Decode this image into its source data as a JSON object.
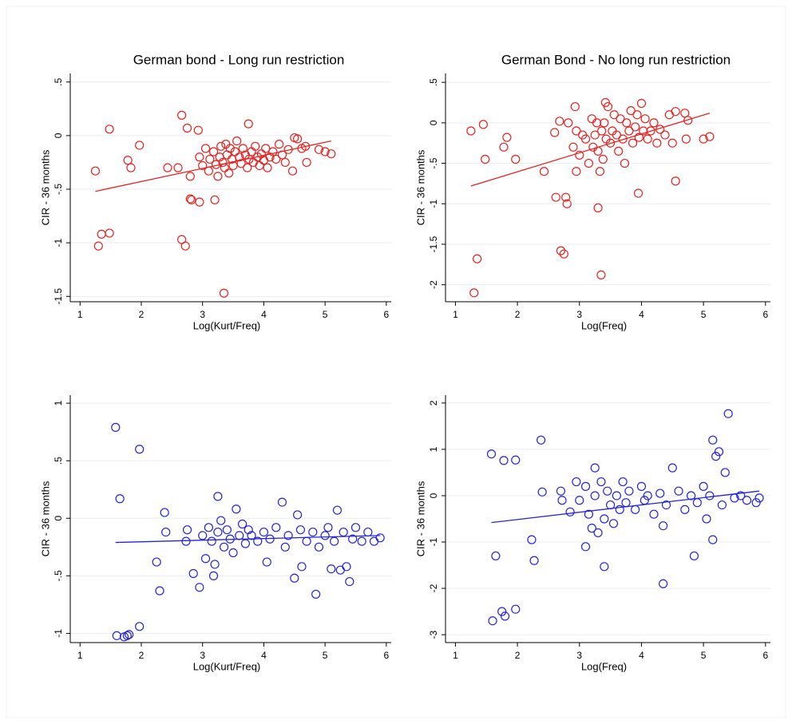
{
  "chart_data": [
    {
      "type": "scatter",
      "title": "German bond - Long run restriction",
      "xlabel": "Log(Kurt/Freq)",
      "ylabel": "CIR - 36 months",
      "xlim": [
        0.84,
        6.08
      ],
      "ylim": [
        -1.55,
        0.58
      ],
      "xticks": [
        1,
        2,
        3,
        4,
        5,
        6
      ],
      "yticks": [
        {
          "value": 0.5,
          "label": ".5"
        },
        0,
        {
          "value": -0.5,
          "label": "-.5"
        },
        -1,
        -1.5
      ],
      "grid": true,
      "series": [
        {
          "color": "#e8211f",
          "x": [
            1.25,
            1.3,
            1.35,
            1.48,
            1.48,
            1.78,
            1.83,
            1.97,
            2.43,
            2.6,
            2.66,
            2.66,
            2.72,
            2.75,
            2.8,
            2.82,
            2.8,
            2.93,
            2.95,
            3.2,
            3.35,
            3.75,
            2.95,
            3.0,
            3.05,
            3.1,
            3.12,
            3.18,
            3.22,
            3.25,
            3.28,
            3.3,
            3.33,
            3.36,
            3.38,
            3.4,
            3.43,
            3.45,
            3.48,
            3.5,
            3.53,
            3.56,
            3.6,
            3.63,
            3.66,
            3.7,
            3.73,
            3.76,
            3.8,
            3.83,
            3.86,
            3.9,
            3.93,
            3.96,
            4.0,
            4.03,
            4.06,
            4.1,
            4.15,
            4.2,
            4.25,
            4.3,
            4.35,
            4.4,
            4.47,
            4.5,
            4.55,
            4.62,
            4.7,
            4.68,
            4.9,
            5.0,
            5.1
          ],
          "values": [
            -0.33,
            -1.03,
            -0.92,
            -0.91,
            0.06,
            -0.23,
            -0.3,
            -0.09,
            -0.3,
            -0.3,
            0.19,
            -0.97,
            -1.03,
            0.07,
            -0.59,
            -0.6,
            -0.38,
            0.05,
            -0.62,
            -0.6,
            -1.47,
            0.11,
            -0.2,
            -0.28,
            -0.12,
            -0.33,
            -0.22,
            -0.15,
            -0.27,
            -0.38,
            -0.2,
            -0.1,
            -0.25,
            -0.3,
            -0.08,
            -0.18,
            -0.35,
            -0.12,
            -0.22,
            -0.28,
            -0.15,
            -0.05,
            -0.2,
            -0.26,
            -0.12,
            -0.18,
            -0.3,
            -0.22,
            -0.15,
            -0.25,
            -0.1,
            -0.2,
            -0.28,
            -0.17,
            -0.23,
            -0.12,
            -0.3,
            -0.2,
            -0.15,
            -0.22,
            -0.08,
            -0.18,
            -0.25,
            -0.13,
            -0.33,
            -0.02,
            -0.03,
            -0.12,
            -0.25,
            -0.1,
            -0.13,
            -0.15,
            -0.17
          ]
        }
      ],
      "fit": {
        "color": "#e8211f",
        "x": [
          1.25,
          5.1
        ],
        "values": [
          -0.52,
          -0.05
        ]
      }
    },
    {
      "type": "scatter",
      "title": "German Bond - No long run restriction",
      "xlabel": "Log(Freq)",
      "ylabel": "CIR - 36 months",
      "xlim": [
        0.84,
        6.08
      ],
      "ylim": [
        -2.21,
        0.61
      ],
      "xticks": [
        1,
        2,
        3,
        4,
        5,
        6
      ],
      "yticks": [
        {
          "value": 0.5,
          "label": ".5"
        },
        0,
        {
          "value": -0.5,
          "label": "-.5"
        },
        -1,
        -1.5,
        -2
      ],
      "grid": true,
      "series": [
        {
          "color": "#e8211f",
          "x": [
            1.25,
            1.3,
            1.35,
            1.45,
            1.48,
            1.78,
            1.83,
            1.97,
            2.43,
            2.6,
            2.62,
            2.68,
            2.7,
            2.75,
            2.78,
            2.8,
            2.82,
            2.9,
            2.93,
            2.95,
            3.3,
            3.35,
            3.42,
            3.95,
            4.55,
            2.95,
            3.0,
            3.05,
            3.1,
            3.15,
            3.2,
            3.22,
            3.25,
            3.28,
            3.3,
            3.33,
            3.36,
            3.38,
            3.4,
            3.43,
            3.46,
            3.5,
            3.53,
            3.56,
            3.6,
            3.63,
            3.66,
            3.7,
            3.73,
            3.76,
            3.8,
            3.83,
            3.86,
            3.9,
            3.93,
            3.96,
            4.0,
            4.03,
            4.06,
            4.1,
            4.15,
            4.2,
            4.25,
            4.3,
            4.38,
            4.45,
            4.5,
            4.55,
            4.7,
            4.72,
            4.75,
            5.0,
            5.1
          ],
          "values": [
            -0.1,
            -2.1,
            -1.68,
            -0.02,
            -0.45,
            -0.3,
            -0.18,
            -0.45,
            -0.6,
            -0.12,
            -0.92,
            0.02,
            -1.58,
            -1.62,
            -0.92,
            -1.0,
            0.0,
            -0.3,
            0.2,
            -0.6,
            -1.05,
            -1.88,
            0.25,
            -0.87,
            -0.72,
            -0.1,
            -0.4,
            -0.15,
            -0.2,
            -0.5,
            0.05,
            -0.3,
            -0.15,
            0.0,
            -0.35,
            -0.6,
            -0.1,
            -0.45,
            0.0,
            -0.2,
            0.2,
            -0.25,
            -0.1,
            0.1,
            -0.15,
            -0.35,
            0.05,
            -0.2,
            -0.5,
            0.0,
            -0.1,
            0.15,
            -0.25,
            -0.05,
            0.1,
            -0.18,
            0.24,
            -0.1,
            0.05,
            -0.2,
            -0.1,
            0.0,
            -0.25,
            -0.08,
            -0.15,
            0.1,
            -0.25,
            0.14,
            0.12,
            -0.2,
            0.03,
            -0.2,
            -0.17
          ]
        }
      ],
      "fit": {
        "color": "#e8211f",
        "x": [
          1.25,
          5.1
        ],
        "values": [
          -0.78,
          0.12
        ]
      }
    },
    {
      "type": "scatter",
      "xlabel": "Log(Kurt/Freq)",
      "ylabel": "CIR - 36 months",
      "xlim": [
        0.84,
        6.08
      ],
      "ylim": [
        -1.08,
        1.07
      ],
      "xticks": [
        1,
        2,
        3,
        4,
        5,
        6
      ],
      "yticks": [
        1,
        {
          "value": 0.5,
          "label": ".5"
        },
        0,
        {
          "value": -0.5,
          "label": "-.5"
        },
        -1
      ],
      "grid": true,
      "series": [
        {
          "color": "#2323e0",
          "x": [
            1.58,
            1.65,
            1.6,
            1.72,
            1.77,
            1.8,
            1.97,
            1.97,
            2.25,
            2.3,
            2.38,
            2.4,
            2.73,
            2.75,
            2.85,
            2.95,
            3.05,
            3.18,
            3.25,
            3.2,
            3.0,
            3.1,
            3.15,
            3.25,
            3.3,
            3.35,
            3.4,
            3.45,
            3.5,
            3.55,
            3.6,
            3.65,
            3.7,
            3.75,
            3.8,
            3.9,
            4.0,
            4.05,
            4.1,
            4.2,
            4.3,
            4.35,
            4.4,
            4.5,
            4.55,
            4.6,
            4.62,
            4.7,
            4.8,
            4.85,
            4.9,
            5.0,
            5.05,
            5.1,
            5.15,
            5.2,
            5.25,
            5.3,
            5.35,
            5.4,
            5.45,
            5.5,
            5.6,
            5.7,
            5.8,
            5.9
          ],
          "values": [
            0.79,
            0.17,
            -1.02,
            -1.03,
            -1.02,
            -1.01,
            -0.94,
            0.6,
            -0.38,
            -0.63,
            0.05,
            -0.12,
            -0.2,
            -0.1,
            -0.48,
            -0.6,
            -0.35,
            -0.5,
            0.19,
            -0.4,
            -0.15,
            -0.08,
            -0.2,
            -0.12,
            -0.02,
            -0.25,
            -0.1,
            -0.18,
            -0.3,
            0.08,
            -0.15,
            -0.05,
            -0.22,
            -0.1,
            -0.15,
            -0.2,
            -0.12,
            -0.38,
            -0.18,
            -0.08,
            0.14,
            -0.25,
            -0.15,
            -0.52,
            0.03,
            -0.1,
            -0.42,
            -0.2,
            -0.12,
            -0.66,
            -0.25,
            -0.15,
            -0.08,
            -0.44,
            -0.2,
            0.07,
            -0.45,
            -0.12,
            -0.42,
            -0.55,
            -0.18,
            -0.08,
            -0.2,
            -0.12,
            -0.2,
            -0.17
          ]
        }
      ],
      "fit": {
        "color": "#2323e0",
        "x": [
          1.58,
          5.9
        ],
        "values": [
          -0.21,
          -0.15
        ]
      }
    },
    {
      "type": "scatter",
      "xlabel": "Log(Freq)",
      "ylabel": "CIR - 36 months",
      "xlim": [
        0.84,
        6.08
      ],
      "ylim": [
        -3.17,
        2.17
      ],
      "xticks": [
        1,
        2,
        3,
        4,
        5,
        6
      ],
      "yticks": [
        2,
        1,
        0,
        -1,
        -2,
        -3
      ],
      "grid": true,
      "series": [
        {
          "color": "#2323e0",
          "x": [
            1.58,
            1.6,
            1.65,
            1.75,
            1.78,
            1.8,
            1.97,
            1.97,
            2.23,
            2.27,
            2.38,
            2.4,
            2.7,
            2.72,
            2.85,
            3.1,
            3.25,
            3.4,
            4.35,
            4.85,
            5.15,
            5.2,
            5.25,
            5.4,
            5.15,
            2.95,
            3.0,
            3.1,
            3.15,
            3.2,
            3.25,
            3.3,
            3.35,
            3.4,
            3.45,
            3.5,
            3.55,
            3.6,
            3.65,
            3.7,
            3.75,
            3.8,
            3.9,
            4.0,
            4.05,
            4.1,
            4.2,
            4.3,
            4.35,
            4.4,
            4.5,
            4.6,
            4.7,
            4.8,
            4.9,
            5.0,
            5.05,
            5.1,
            5.3,
            5.35,
            5.5,
            5.6,
            5.7,
            5.85,
            5.9
          ],
          "values": [
            0.9,
            -2.7,
            -1.3,
            -2.5,
            0.76,
            -2.6,
            0.77,
            -2.45,
            -0.95,
            -1.4,
            1.2,
            0.08,
            0.1,
            -0.1,
            -0.35,
            -1.1,
            0.6,
            -1.53,
            -1.9,
            -1.3,
            1.2,
            0.85,
            0.95,
            1.77,
            -0.95,
            0.3,
            -0.1,
            0.2,
            -0.4,
            -0.7,
            0.0,
            -0.8,
            0.3,
            -0.5,
            0.1,
            -0.2,
            -0.6,
            0.0,
            -0.3,
            0.3,
            -0.15,
            0.1,
            -0.3,
            0.2,
            -0.1,
            0.0,
            -0.4,
            0.05,
            -0.65,
            -0.2,
            0.6,
            0.1,
            -0.3,
            0.0,
            -0.15,
            0.2,
            -0.5,
            0.0,
            -0.2,
            0.5,
            -0.05,
            0.0,
            -0.1,
            -0.15,
            -0.05
          ]
        }
      ],
      "fit": {
        "color": "#2323e0",
        "x": [
          1.58,
          5.9
        ],
        "values": [
          -0.58,
          0.1
        ]
      }
    }
  ]
}
